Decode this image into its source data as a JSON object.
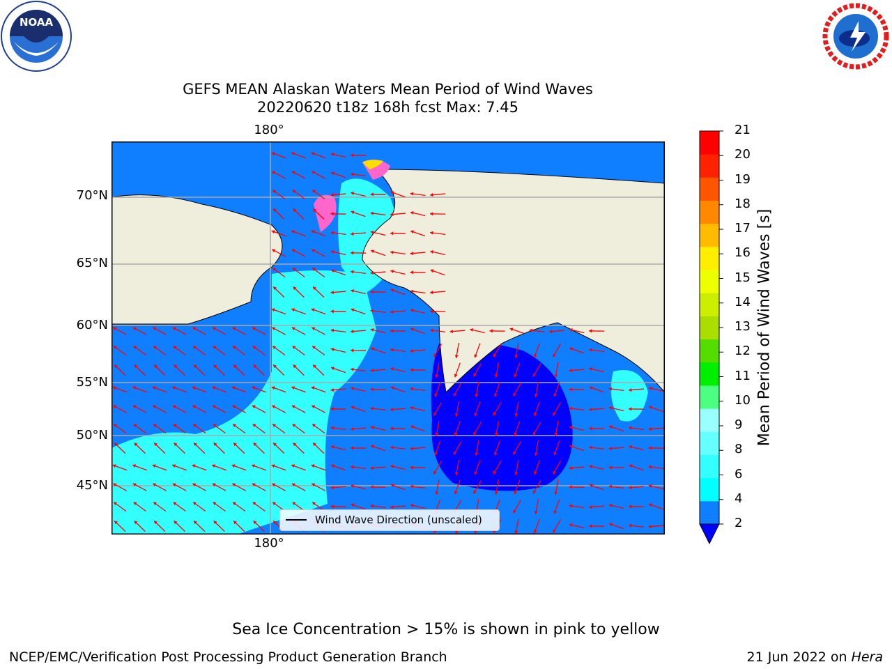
{
  "title_line1": "GEFS MEAN Alaskan Waters Mean Period of Wind Waves",
  "title_line2": "20220620 t18z 168h fcst   Max: 7.45",
  "lon_labels": {
    "top": "180°",
    "bottom": "180°"
  },
  "lat_labels": [
    "70°N",
    "65°N",
    "60°N",
    "55°N",
    "50°N",
    "45°N"
  ],
  "legend": {
    "label": "Wind Wave Direction (unscaled)"
  },
  "colorbar": {
    "title": "Mean Period of Wind Waves [s]",
    "ticks": [
      "2",
      "4",
      "6",
      "8",
      "9",
      "10",
      "11",
      "12",
      "13",
      "14",
      "15",
      "16",
      "17",
      "18",
      "19",
      "20",
      "21"
    ],
    "colors": [
      "#0f7fff",
      "#00ffff",
      "#33ffff",
      "#66ffff",
      "#99ffff",
      "#4dff80",
      "#00ee00",
      "#55dd00",
      "#aadd00",
      "#ccee00",
      "#eeff00",
      "#ffee00",
      "#ffbb00",
      "#ff8800",
      "#ff5500",
      "#ff2200",
      "#ff0000"
    ],
    "extend_color": "#0000ff"
  },
  "note": "Sea Ice Concentration > 15% is shown in pink to yellow",
  "footer_left": "NCEP/EMC/Verification Post Processing Product Generation Branch",
  "footer_date": "21 Jun 2022 on",
  "footer_host": "Hera",
  "logos": {
    "left": "NOAA",
    "right": "NATIONAL WEATHER SERVICE"
  },
  "colors": {
    "land": "#efeedc",
    "ocean_low": "#0f7fff",
    "ocean_mid": "#33ffff",
    "ocean_deep": "#0000ff",
    "arrow": "#ff0000",
    "ice_pink": "#ff66cc",
    "ice_yellow": "#ffdd00"
  }
}
